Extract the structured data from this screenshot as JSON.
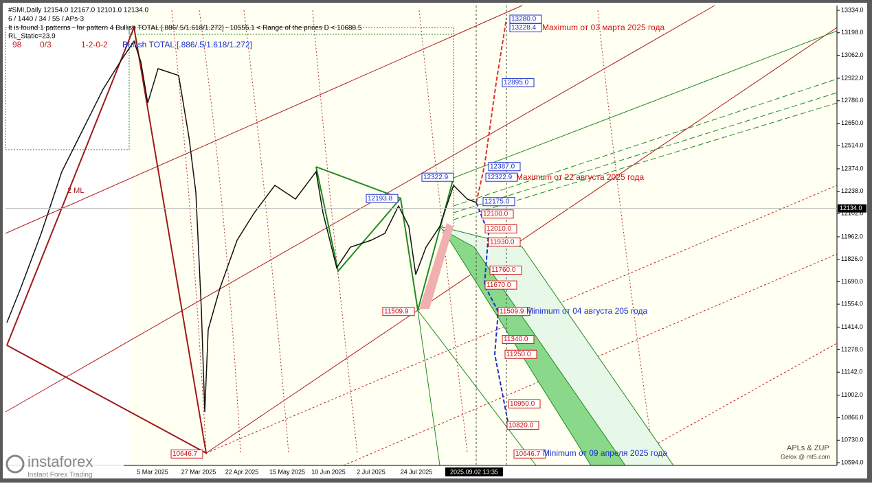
{
  "header": {
    "symbol": "#SMI,Daily  12154.0 12167.0 12101.0 12134.0",
    "params": "6 / 1440 / 34 / 55 / APs-3",
    "patterns": "It is found 1 patterns  -  for pattern 4 Bullish TOTAL [.886/.5/1.618/1.272]  -  10555.1 < Range of the prices D < 10688.5",
    "rl": "RL_Static=23.9",
    "counters": [
      "98",
      "0/3",
      "1-2-0-2"
    ],
    "pattern_name": "Bullish TOTAL [.886/.5/1.618/1.272]"
  },
  "axis": {
    "ylim": [
      10594,
      13334
    ],
    "yticks": [
      {
        "value": 13334,
        "label": "13334.0"
      },
      {
        "value": 13198,
        "label": "13198.0"
      },
      {
        "value": 13062,
        "label": "13062.0"
      },
      {
        "value": 12922,
        "label": "12922.0"
      },
      {
        "value": 12786,
        "label": "12786.0"
      },
      {
        "value": 12650,
        "label": "12650.0"
      },
      {
        "value": 12514,
        "label": "12514.0"
      },
      {
        "value": 12374,
        "label": "12374.0"
      },
      {
        "value": 12238,
        "label": "12238.0"
      },
      {
        "value": 12102,
        "label": "12102.0"
      },
      {
        "value": 11962,
        "label": "11962.0"
      },
      {
        "value": 11826,
        "label": "11826.0"
      },
      {
        "value": 11690,
        "label": "11690.0"
      },
      {
        "value": 11554,
        "label": "11554.0"
      },
      {
        "value": 11414,
        "label": "11414.0"
      },
      {
        "value": 11278,
        "label": "11278.0"
      },
      {
        "value": 11142,
        "label": "11142.0"
      },
      {
        "value": 11002,
        "label": "11002.0"
      },
      {
        "value": 10866,
        "label": "10866.0"
      },
      {
        "value": 10730,
        "label": "10730.0"
      },
      {
        "value": 10594,
        "label": "10594.0"
      }
    ],
    "xlabels": [
      "5 Mar 2025",
      "27 Mar 2025",
      "22 Apr 2025",
      "15 May 2025",
      "10 Jun 2025",
      "2 Jul 2025",
      "24 Jul 2025",
      "2025.09.02 13:35"
    ]
  },
  "current_price": {
    "value": 12134,
    "label": "12134.0"
  },
  "levels": [
    {
      "value": 13280,
      "label": "13280.0",
      "color": "#1a2fd0"
    },
    {
      "value": 13228.4,
      "label": "13228.4",
      "color": "#1a2fd0"
    },
    {
      "value": 12895,
      "label": "12895.0",
      "color": "#1a2fd0"
    },
    {
      "value": 12387,
      "label": "12387.0",
      "color": "#1a2fd0"
    },
    {
      "value": 12322.9,
      "label": "12322.9",
      "color": "#1a2fd0"
    },
    {
      "value": 12175,
      "label": "12175.0",
      "color": "#1a2fd0"
    },
    {
      "value": 12100,
      "label": "12100.0",
      "color": "#d01010"
    },
    {
      "value": 12010,
      "label": "12010.0",
      "color": "#d01010"
    },
    {
      "value": 11930,
      "label": "11930.0",
      "color": "#d01010"
    },
    {
      "value": 11760,
      "label": "11760.0",
      "color": "#d01010"
    },
    {
      "value": 11670,
      "label": "11670.0",
      "color": "#d01010"
    },
    {
      "value": 11509.9,
      "label": "11509.9",
      "color": "#d01010"
    },
    {
      "value": 11340,
      "label": "11340.0",
      "color": "#d01010"
    },
    {
      "value": 11250,
      "label": "11250.0",
      "color": "#d01010"
    },
    {
      "value": 10950,
      "label": "10950.0",
      "color": "#d01010"
    },
    {
      "value": 10820,
      "label": "10820.0",
      "color": "#d01010"
    },
    {
      "value": 10646.7,
      "label": "10646.7",
      "color": "#d01010"
    },
    {
      "value": 12193.8,
      "label": "12193.8",
      "color": "#1a2fd0"
    },
    {
      "value": 12322.9,
      "label": "12322.9",
      "color": "#1a2fd0"
    },
    {
      "value": 11509.9,
      "label": "11509.9",
      "color": "#d01010"
    },
    {
      "value": 10646.7,
      "label": "10646.7",
      "color": "#d01010"
    }
  ],
  "annotations": [
    {
      "text": "Maximum от 03 марта 2025 года",
      "color": "#d01010"
    },
    {
      "text": "Maximum от 22 августа 2025 года",
      "color": "#d01010"
    },
    {
      "text": "Minimum от 04 августа 205 года",
      "color": "#1a2fd0"
    },
    {
      "text": "Minimum от 09 апреля 2025 года",
      "color": "#1a2fd0"
    }
  ],
  "labels": {
    "ml": "2 ML",
    "zup": "APLs & ZUP",
    "site": "Gelox @ mt5.com"
  },
  "logo": {
    "name": "instaforex",
    "tagline": "Instant Forex Trading"
  }
}
